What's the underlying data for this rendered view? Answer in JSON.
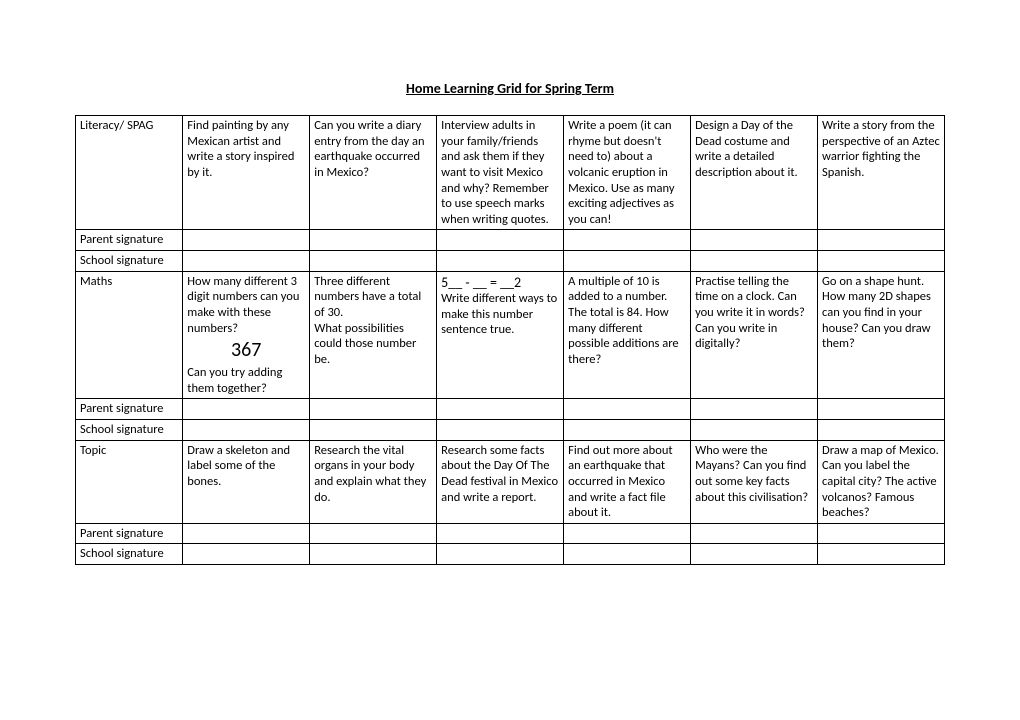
{
  "title": "Home Learning Grid for Spring Term",
  "colors": {
    "background": "#ffffff",
    "text": "#000000",
    "border": "#000000"
  },
  "fonts": {
    "body_family": "Calibri, Arial, sans-serif",
    "body_size_pt": 12.5,
    "title_size_pt": 14,
    "big_number_size_pt": 20
  },
  "column_widths_pct": [
    12.2,
    14.63,
    14.63,
    14.63,
    14.63,
    14.63,
    14.63
  ],
  "rows": {
    "literacy": {
      "label": "Literacy/ SPAG",
      "cells": [
        "Find painting by any Mexican artist and write a story inspired by it.",
        "Can you write a diary entry from the day an earthquake occurred in Mexico?",
        "Interview adults in your family/friends and ask them if they want to visit Mexico and why? Remember to use speech marks when writing quotes.",
        "Write a poem (it can rhyme but doesn't need to) about a volcanic eruption in Mexico. Use as many exciting adjectives as you can!",
        "Design a Day of the Dead costume and write a detailed description about it.",
        "Write a story from the perspective of an Aztec warrior fighting the Spanish."
      ]
    },
    "maths": {
      "label": "Maths",
      "cell0_part1": "How many different 3 digit numbers can you make with these numbers?",
      "cell0_big": "367",
      "cell0_part2": "Can you try adding them together?",
      "cell1_part1": "Three different numbers have a total of 30.",
      "cell1_part2": "What possibilities could those number be.",
      "cell2_eq": "5__ - __ = __2",
      "cell2_body": "Write different ways to make this number sentence true.",
      "cell3": "A multiple of 10 is added to a number. The total is 84. How many different possible additions are there?",
      "cell4": "Practise telling the time on a clock. Can you write it in words? Can you write in digitally?",
      "cell5": "Go on a shape hunt. How many 2D shapes can you find in your house? Can you draw them?"
    },
    "topic": {
      "label": "Topic",
      "cells": [
        "Draw a skeleton and label some of the bones.",
        "Research the vital organs in your body and explain what they do.",
        "Research some facts about the Day Of The Dead festival in Mexico and write a report.",
        "Find out more about an earthquake that occurred in Mexico and write a fact file about it.",
        "Who were the Mayans? Can you find out some key facts about this civilisation?",
        "Draw a map of Mexico.  Can you label the capital city? The active volcanos? Famous beaches?"
      ]
    },
    "parent_sig": "Parent signature",
    "school_sig": "School signature"
  }
}
